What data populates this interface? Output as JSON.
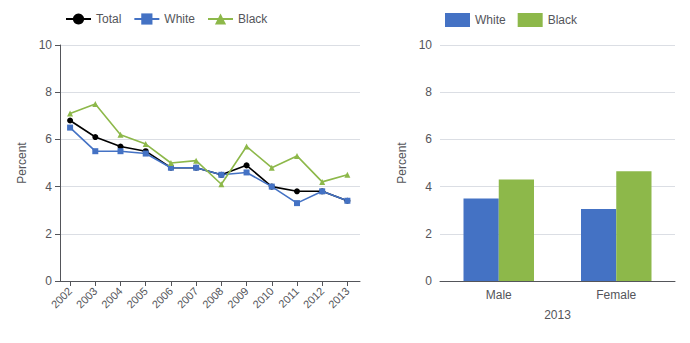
{
  "chart_data": [
    {
      "type": "line",
      "x": [
        2002,
        2003,
        2004,
        2005,
        2006,
        2007,
        2008,
        2009,
        2010,
        2011,
        2012,
        2013
      ],
      "xlim": [
        2001.6,
        2013.5
      ],
      "xticks": [
        2002,
        2003,
        2004,
        2005,
        2006,
        2007,
        2008,
        2009,
        2010,
        2011,
        2012,
        2013
      ],
      "ylabel": "Percent",
      "ylim": [
        0,
        10
      ],
      "yticks": [
        0,
        2,
        4,
        6,
        8,
        10
      ],
      "grid": true,
      "legend": "top",
      "series": [
        {
          "name": "Total",
          "color": "#000000",
          "marker": "circle",
          "values": [
            6.8,
            6.1,
            5.7,
            5.5,
            4.8,
            4.8,
            4.5,
            4.9,
            4.0,
            3.8,
            3.8,
            3.4
          ]
        },
        {
          "name": "White",
          "color": "#4472c4",
          "marker": "square",
          "values": [
            6.5,
            5.5,
            5.5,
            5.4,
            4.8,
            4.8,
            4.5,
            4.6,
            4.0,
            3.3,
            3.8,
            3.4
          ]
        },
        {
          "name": "Black",
          "color": "#8db84a",
          "marker": "triangle",
          "values": [
            7.1,
            7.5,
            6.2,
            5.8,
            5.0,
            5.1,
            4.1,
            5.7,
            4.8,
            5.3,
            4.2,
            4.5
          ]
        }
      ]
    },
    {
      "type": "bar",
      "categories": [
        "Male",
        "Female"
      ],
      "xlabel": "2013",
      "ylabel": "Percent",
      "ylim": [
        0,
        10
      ],
      "yticks": [
        0,
        2,
        4,
        6,
        8,
        10
      ],
      "grid": true,
      "legend": "top",
      "series": [
        {
          "name": "White",
          "color": "#4472c4",
          "values": [
            3.5,
            3.05
          ]
        },
        {
          "name": "Black",
          "color": "#8db84a",
          "values": [
            4.3,
            4.65
          ]
        }
      ]
    }
  ]
}
